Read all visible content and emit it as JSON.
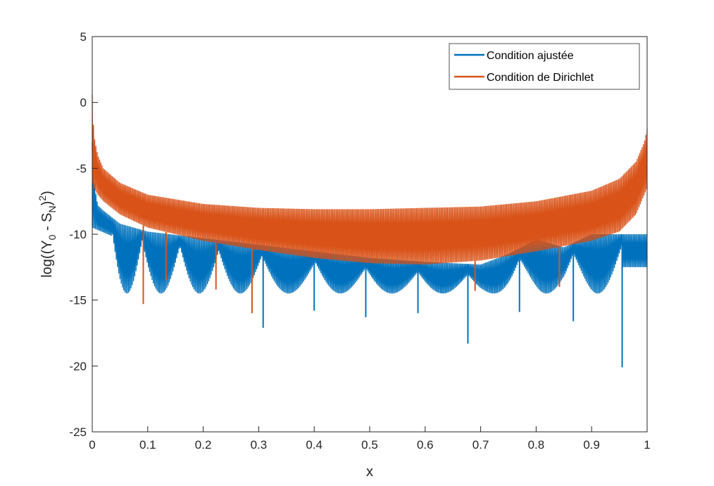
{
  "chart_data": {
    "type": "line",
    "xlabel": "x",
    "ylabel": "log((Y_0 - S_N)^2)",
    "xlim": [
      0,
      1
    ],
    "ylim": [
      -25,
      5
    ],
    "xticks": [
      0,
      0.1,
      0.2,
      0.3,
      0.4,
      0.5,
      0.6,
      0.7,
      0.8,
      0.9,
      1
    ],
    "xtick_labels": [
      "0",
      "0.1",
      "0.2",
      "0.3",
      "0.4",
      "0.5",
      "0.6",
      "0.7",
      "0.8",
      "0.9",
      "1"
    ],
    "yticks": [
      5,
      0,
      -5,
      -10,
      -15,
      -20,
      -25
    ],
    "ytick_labels": [
      "5",
      "0",
      "-5",
      "-10",
      "-15",
      "-20",
      "-25"
    ],
    "grid": false,
    "legend_position": "top-right",
    "series": [
      {
        "name": "Condition ajustée",
        "color": "#0072BD",
        "envelope_x": [
          0,
          0.005,
          0.01,
          0.02,
          0.05,
          0.1,
          0.2,
          0.3,
          0.4,
          0.5,
          0.6,
          0.7,
          0.75,
          0.8,
          0.85,
          0.9,
          0.95,
          1
        ],
        "envelope_upper_y": [
          -3,
          -6.5,
          -7.8,
          -8.2,
          -9.2,
          -9.8,
          -10.3,
          -10.8,
          -11.3,
          -11.8,
          -12.1,
          -12.3,
          -11.5,
          -10.4,
          -11.0,
          -10.0,
          -10.0,
          -10.0
        ],
        "lobe_edges_x": [
          0.035,
          0.09,
          0.158,
          0.228,
          0.306,
          0.402,
          0.493,
          0.587,
          0.677,
          0.77,
          0.867,
          0.955
        ],
        "minima": [
          {
            "x": 0.308,
            "y": -17.1
          },
          {
            "x": 0.4,
            "y": -15.8
          },
          {
            "x": 0.493,
            "y": -16.3
          },
          {
            "x": 0.587,
            "y": -16.0
          },
          {
            "x": 0.677,
            "y": -18.3
          },
          {
            "x": 0.77,
            "y": -15.9
          },
          {
            "x": 0.867,
            "y": -16.6
          },
          {
            "x": 0.955,
            "y": -20.1
          }
        ]
      },
      {
        "name": "Condition de Dirichlet",
        "color": "#D95319",
        "envelope_x": [
          0,
          0.003,
          0.01,
          0.02,
          0.05,
          0.1,
          0.2,
          0.3,
          0.4,
          0.5,
          0.6,
          0.7,
          0.8,
          0.9,
          0.95,
          0.98,
          0.995,
          1
        ],
        "envelope_upper_y": [
          0.6,
          -2.5,
          -4.0,
          -5.0,
          -6.1,
          -7.0,
          -7.7,
          -8.0,
          -8.1,
          -8.1,
          -8.0,
          -7.9,
          -7.5,
          -6.7,
          -5.8,
          -4.5,
          -3.0,
          -2.0
        ],
        "envelope_lower_y": [
          -6.0,
          -6.5,
          -7.0,
          -7.5,
          -8.5,
          -9.5,
          -10.5,
          -11.2,
          -11.8,
          -12.2,
          -12.3,
          -12.0,
          -11.3,
          -10.5,
          -9.8,
          -8.5,
          -7.0,
          -6.5
        ],
        "spikes": [
          {
            "x": 0.092,
            "y": -15.3
          },
          {
            "x": 0.133,
            "y": -13.5
          },
          {
            "x": 0.223,
            "y": -14.2
          },
          {
            "x": 0.288,
            "y": -16.0
          },
          {
            "x": 0.69,
            "y": -14.3
          },
          {
            "x": 0.842,
            "y": -14.0
          }
        ]
      }
    ]
  }
}
